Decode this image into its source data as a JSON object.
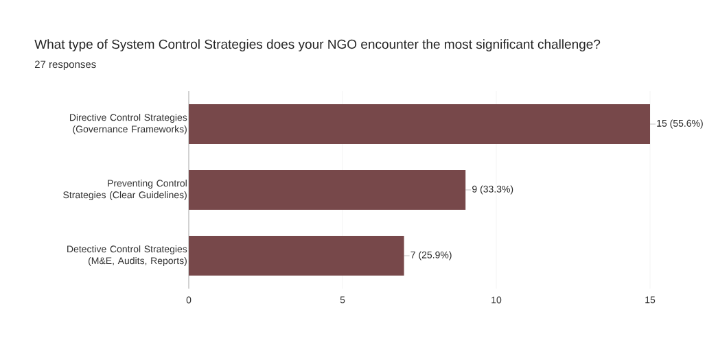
{
  "chart_data": {
    "type": "bar",
    "orientation": "horizontal",
    "title": "What type of System Control Strategies does your NGO encounter the most significant challenge?",
    "subtitle": "27 responses",
    "categories": [
      "Directive Control Strategies (Governance Frameworks)",
      "Preventing Control Strategies (Clear Guidelines)",
      "Detective Control Strategies (M&E, Audits, Reports)"
    ],
    "values": [
      15,
      9,
      7
    ],
    "value_labels": [
      "15 (55.6%)",
      "9 (33.3%)",
      "7 (25.9%)"
    ],
    "color": "#77484a",
    "xlim": [
      0,
      15
    ],
    "xticks": [
      0,
      5,
      10,
      15
    ],
    "grid": "x"
  }
}
